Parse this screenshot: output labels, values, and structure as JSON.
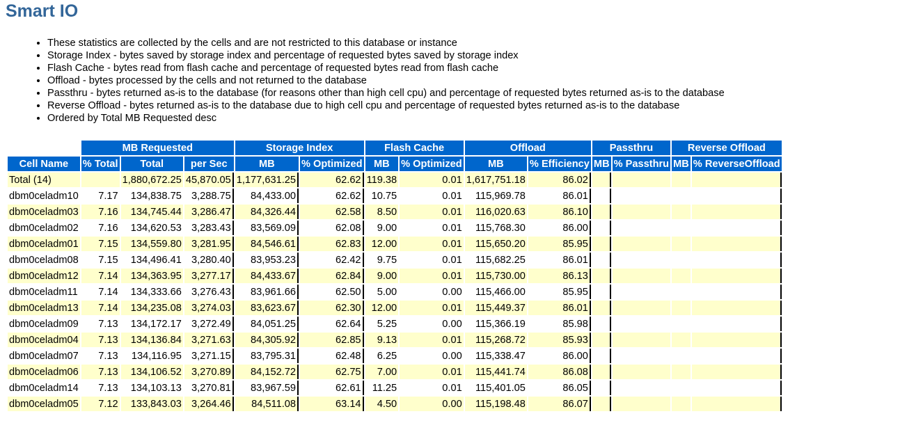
{
  "title": "Smart IO",
  "notes": [
    "These statistics are collected by the cells and are not restricted to this database or instance",
    "Storage Index - bytes saved by storage index and percentage of requested bytes saved by storage index",
    "Flash Cache - bytes read from flash cache and percentage of requested bytes read from flash cache",
    "Offload - bytes processed by the cells and not returned to the database",
    "Passthru - bytes returned as-is to the database (for reasons other than high cell cpu) and percentage of requested bytes returned as-is to the database",
    "Reverse Offload - bytes returned as-is to the database due to high cell cpu and percentage of requested bytes returned as-is to the database",
    "Ordered by Total MB Requested desc"
  ],
  "table": {
    "group_headers": [
      "",
      "MB Requested",
      "Storage Index",
      "Flash Cache",
      "Offload",
      "Passthru",
      "Reverse Offload"
    ],
    "columns": [
      "Cell Name",
      "% Total",
      "Total",
      "per Sec",
      "MB",
      "% Optimized",
      "MB",
      "% Optimized",
      "MB",
      "% Efficiency",
      "MB",
      "% Passthru",
      "MB",
      "% ReverseOffload"
    ],
    "rows": [
      [
        "Total (14)",
        "",
        "1,880,672.25",
        "45,870.05",
        "1,177,631.25",
        "62.62",
        "119.38",
        "0.01",
        "1,617,751.18",
        "86.02",
        "",
        "",
        "",
        ""
      ],
      [
        "dbm0celadm10",
        "7.17",
        "134,838.75",
        "3,288.75",
        "84,433.00",
        "62.62",
        "10.75",
        "0.01",
        "115,969.78",
        "86.01",
        "",
        "",
        "",
        ""
      ],
      [
        "dbm0celadm03",
        "7.16",
        "134,745.44",
        "3,286.47",
        "84,326.44",
        "62.58",
        "8.50",
        "0.01",
        "116,020.63",
        "86.10",
        "",
        "",
        "",
        ""
      ],
      [
        "dbm0celadm02",
        "7.16",
        "134,620.53",
        "3,283.43",
        "83,569.09",
        "62.08",
        "9.00",
        "0.01",
        "115,768.30",
        "86.00",
        "",
        "",
        "",
        ""
      ],
      [
        "dbm0celadm01",
        "7.15",
        "134,559.80",
        "3,281.95",
        "84,546.61",
        "62.83",
        "12.00",
        "0.01",
        "115,650.20",
        "85.95",
        "",
        "",
        "",
        ""
      ],
      [
        "dbm0celadm08",
        "7.15",
        "134,496.41",
        "3,280.40",
        "83,953.23",
        "62.42",
        "9.75",
        "0.01",
        "115,682.25",
        "86.01",
        "",
        "",
        "",
        ""
      ],
      [
        "dbm0celadm12",
        "7.14",
        "134,363.95",
        "3,277.17",
        "84,433.67",
        "62.84",
        "9.00",
        "0.01",
        "115,730.00",
        "86.13",
        "",
        "",
        "",
        ""
      ],
      [
        "dbm0celadm11",
        "7.14",
        "134,333.66",
        "3,276.43",
        "83,961.66",
        "62.50",
        "5.00",
        "0.00",
        "115,466.00",
        "85.95",
        "",
        "",
        "",
        ""
      ],
      [
        "dbm0celadm13",
        "7.14",
        "134,235.08",
        "3,274.03",
        "83,623.67",
        "62.30",
        "12.00",
        "0.01",
        "115,449.37",
        "86.01",
        "",
        "",
        "",
        ""
      ],
      [
        "dbm0celadm09",
        "7.13",
        "134,172.17",
        "3,272.49",
        "84,051.25",
        "62.64",
        "5.25",
        "0.00",
        "115,366.19",
        "85.98",
        "",
        "",
        "",
        ""
      ],
      [
        "dbm0celadm04",
        "7.13",
        "134,136.84",
        "3,271.63",
        "84,305.92",
        "62.85",
        "9.13",
        "0.01",
        "115,268.72",
        "85.93",
        "",
        "",
        "",
        ""
      ],
      [
        "dbm0celadm07",
        "7.13",
        "134,116.95",
        "3,271.15",
        "83,795.31",
        "62.48",
        "6.25",
        "0.00",
        "115,338.47",
        "86.00",
        "",
        "",
        "",
        ""
      ],
      [
        "dbm0celadm06",
        "7.13",
        "134,106.52",
        "3,270.89",
        "84,152.72",
        "62.75",
        "7.00",
        "0.01",
        "115,441.74",
        "86.08",
        "",
        "",
        "",
        ""
      ],
      [
        "dbm0celadm14",
        "7.13",
        "134,103.13",
        "3,270.81",
        "83,967.59",
        "62.61",
        "11.25",
        "0.01",
        "115,401.05",
        "86.05",
        "",
        "",
        "",
        ""
      ],
      [
        "dbm0celadm05",
        "7.12",
        "133,843.03",
        "3,264.46",
        "84,511.08",
        "63.14",
        "4.50",
        "0.00",
        "115,198.48",
        "86.07",
        "",
        "",
        "",
        ""
      ]
    ]
  }
}
